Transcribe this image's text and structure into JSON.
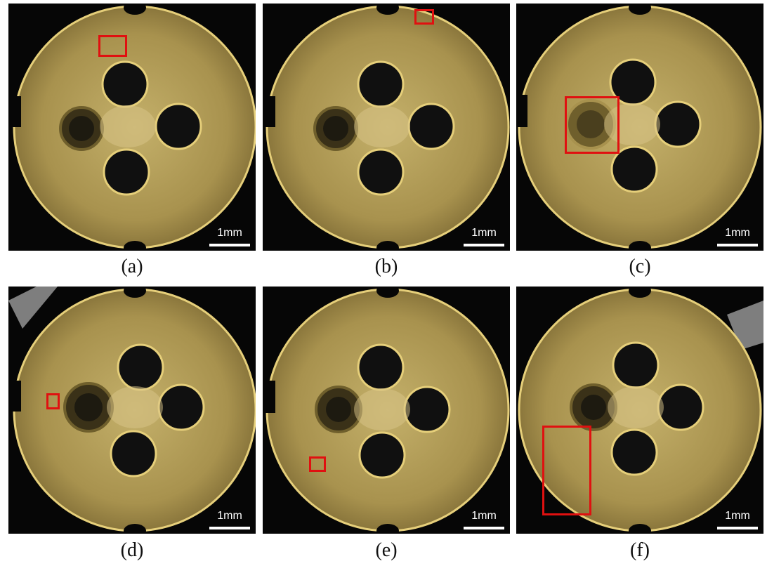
{
  "figure": {
    "panels": [
      {
        "id": "a",
        "caption": "(a)",
        "scale_label": "1mm",
        "damage": "top edge chip"
      },
      {
        "id": "b",
        "caption": "(b)",
        "scale_label": "1mm",
        "damage": "top rim spot"
      },
      {
        "id": "c",
        "caption": "(c)",
        "scale_label": "1mm",
        "damage": "left hole crater"
      },
      {
        "id": "d",
        "caption": "(d)",
        "scale_label": "1mm",
        "damage": "left hole edge"
      },
      {
        "id": "e",
        "caption": "(e)",
        "scale_label": "1mm",
        "damage": "lower left spot"
      },
      {
        "id": "f",
        "caption": "(f)",
        "scale_label": "1mm",
        "damage": "lower left region"
      }
    ],
    "colors": {
      "disk": "#a8924e",
      "disk_dark": "#6f5f2c",
      "rim": "#e6cf7a",
      "background": "#060606",
      "highlight_box": "#e01010"
    }
  }
}
